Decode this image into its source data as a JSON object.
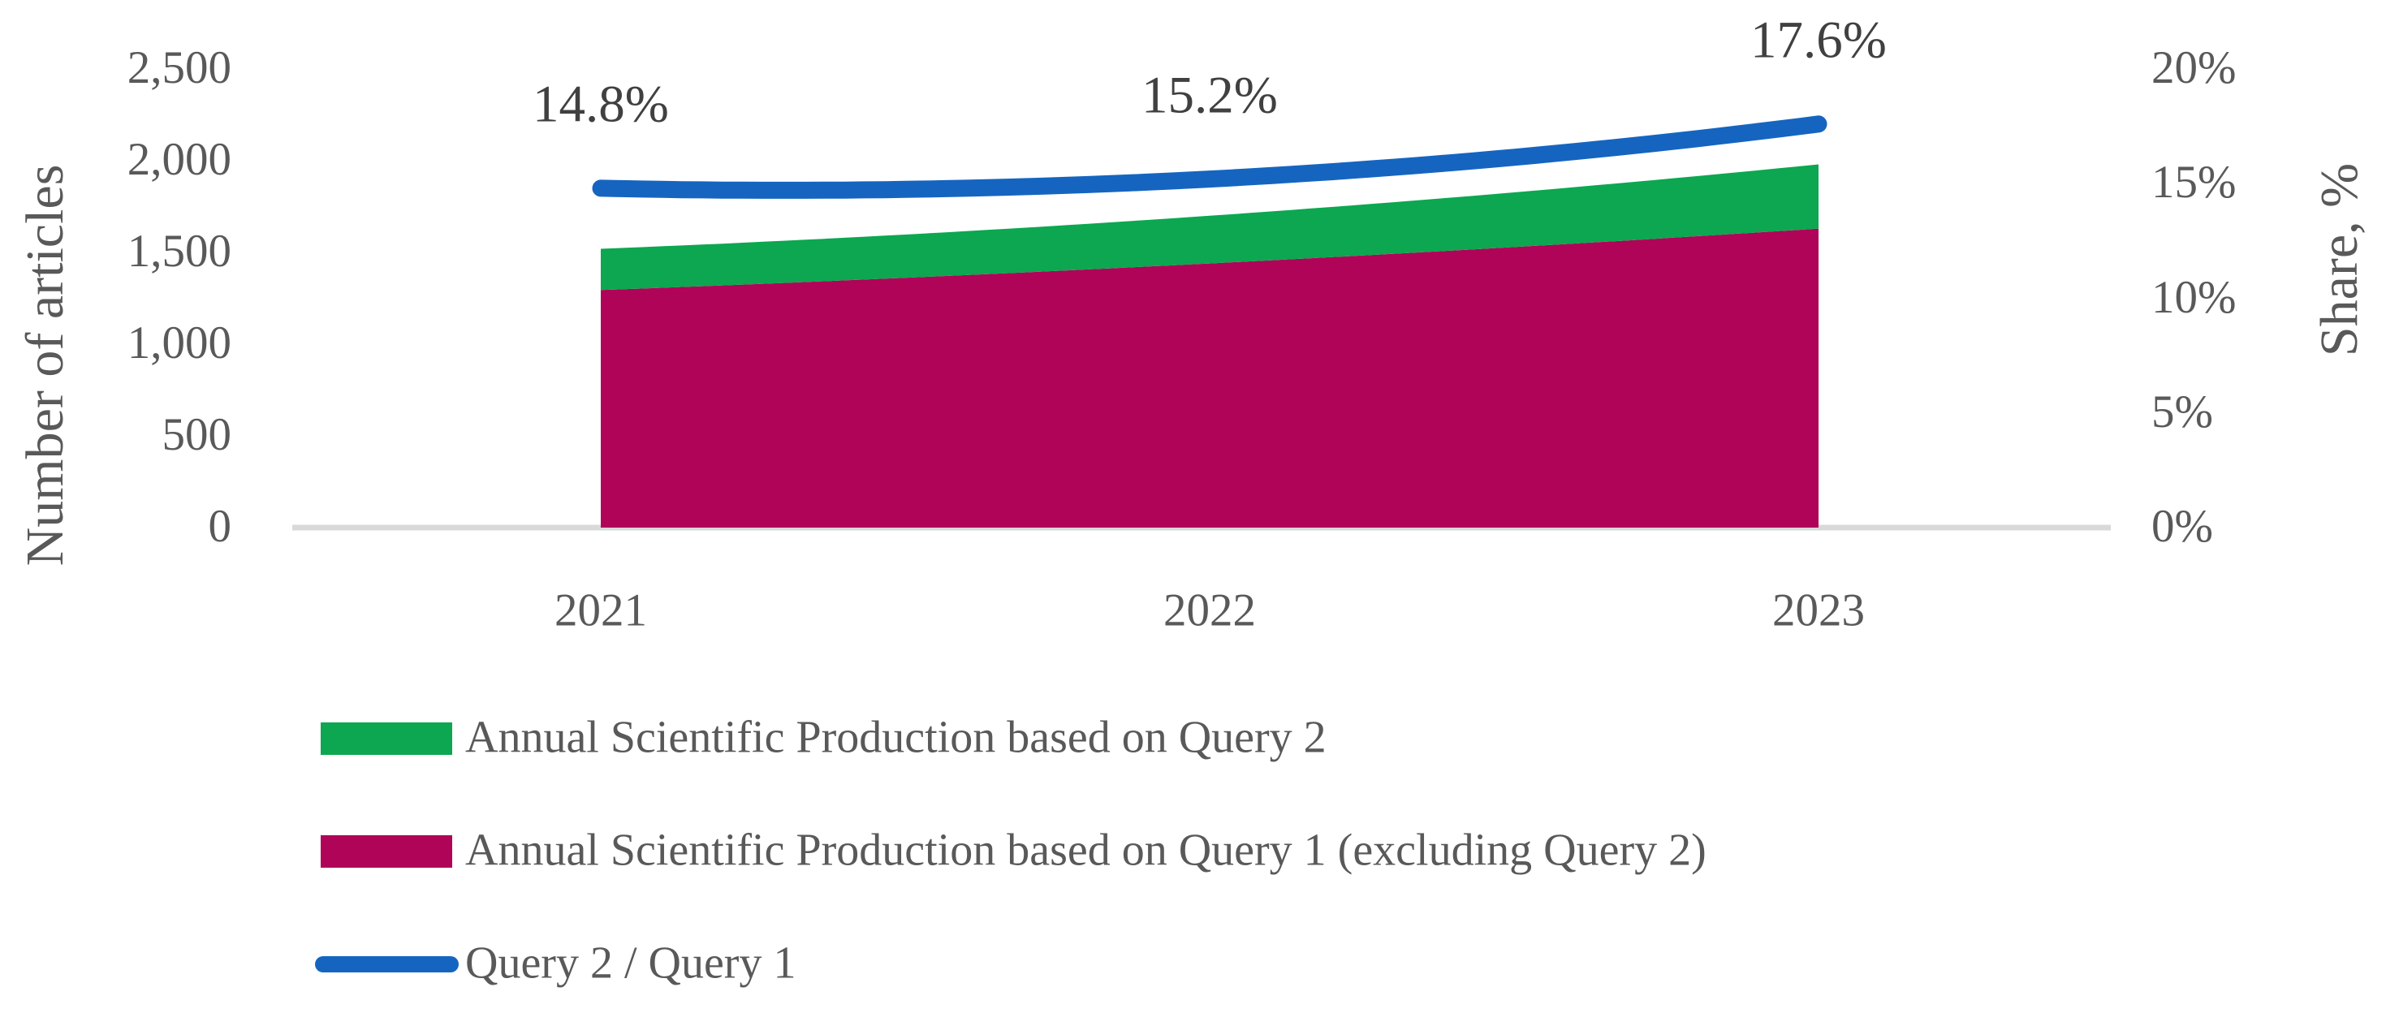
{
  "chart_data": {
    "type": "area",
    "title": "",
    "x_labels": [
      "2021",
      "2022",
      "2023"
    ],
    "xlabel": "",
    "ylabel_left": "Number of articles",
    "ylabel_right": "Share, %",
    "y_left_axis": {
      "min": 0,
      "max": 2500,
      "tick_labels": [
        "0",
        "500",
        "1,000",
        "1,500",
        "2,000",
        "2,500"
      ]
    },
    "y_right_axis": {
      "min": 0,
      "max": 20,
      "tick_labels": [
        "0%",
        "5%",
        "10%",
        "15%",
        "20%"
      ]
    },
    "grid": false,
    "legend_position": "bottom-left",
    "series": [
      {
        "name": "Annual Scientific Production based on Query 2",
        "type": "area",
        "stack_role": "top",
        "color": "#0CA750",
        "values": [
          225,
          260,
          350
        ]
      },
      {
        "name": "Annual Scientific Production based on Query 1 (excluding Query 2)",
        "type": "area",
        "stack_role": "base",
        "color": "#AF0458",
        "values": [
          1295,
          1440,
          1630
        ]
      },
      {
        "name": "Query 2 / Query 1",
        "type": "line",
        "axis": "right",
        "color": "#1565C0",
        "values_pct": [
          14.8,
          15.2,
          17.6
        ]
      }
    ],
    "stacked_totals": [
      1520,
      1700,
      1980
    ],
    "point_labels": [
      "14.8%",
      "15.2%",
      "17.6%"
    ],
    "colors": {
      "axis_line": "#D9D9D9",
      "tick_text": "#595959",
      "point_label_text": "#404040"
    }
  }
}
